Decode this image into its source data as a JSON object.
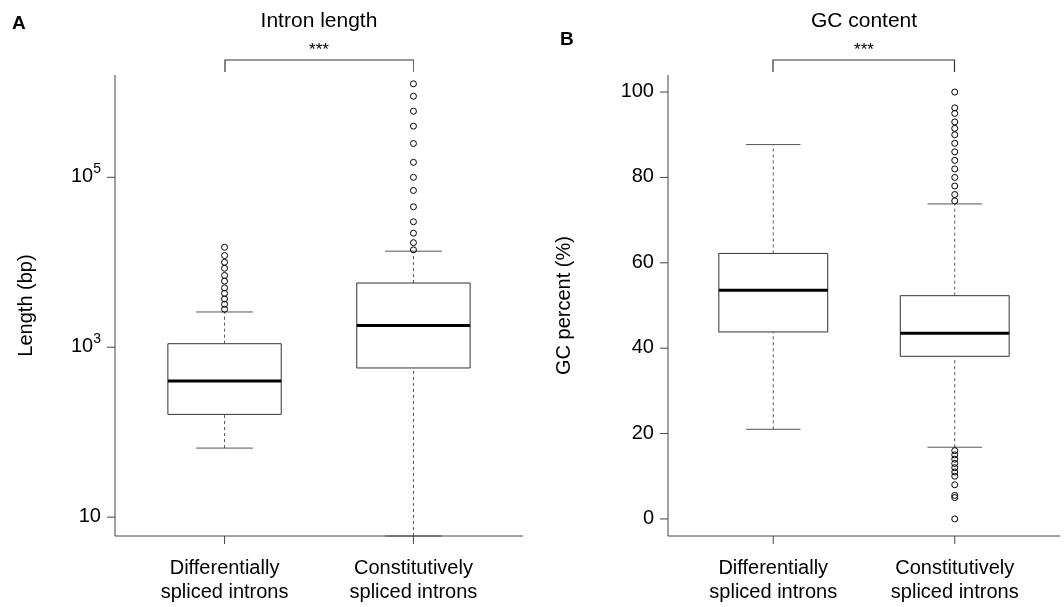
{
  "chart_data": [
    {
      "type": "box",
      "title": "Intron length",
      "ylabel": "Length (bp)",
      "categories": [
        "Differentially spliced introns",
        "Constitutively spliced introns"
      ],
      "log": true,
      "ylim": [
        6,
        1600000
      ],
      "yticks": [
        10,
        {
          "value": 1000,
          "label": "10$^{3}$"
        },
        {
          "value": 100000,
          "label": "10$^{5}$"
        }
      ],
      "boxes": [
        {
          "low": 65,
          "q1": 162,
          "median": 400,
          "q3": 1100,
          "high": 2600,
          "outliers": [
            2800,
            3200,
            3700,
            4300,
            5000,
            6000,
            7000,
            8500,
            10000,
            12000,
            15000
          ]
        },
        {
          "low": 6,
          "q1": 570,
          "median": 1800,
          "q3": 5700,
          "high": 13500,
          "outliers": [
            14000,
            17000,
            22000,
            30000,
            45000,
            70000,
            100000,
            150000,
            250000,
            400000,
            600000,
            900000,
            1260000
          ]
        }
      ],
      "annotations": [
        "A",
        "***"
      ]
    },
    {
      "type": "box",
      "title": "GC content",
      "ylabel": "GC percent (%)",
      "categories": [
        "Differentially spliced introns",
        "Constitutively spliced introns"
      ],
      "ylim": [
        -4,
        104
      ],
      "yticks": [
        0,
        20,
        40,
        60,
        80,
        100
      ],
      "boxes": [
        {
          "low": 21,
          "q1": 43.8,
          "median": 53.6,
          "q3": 62.2,
          "high": 87.7
        },
        {
          "low": 16.8,
          "q1": 38.1,
          "median": 43.5,
          "q3": 52.3,
          "high": 73.8,
          "outliers": [
            0,
            5,
            5.5,
            8,
            10,
            11,
            12,
            13,
            14,
            15,
            16,
            74.5,
            76,
            78,
            80,
            82,
            84,
            86,
            88,
            90,
            91.5,
            93,
            95,
            96.3,
            100
          ]
        }
      ],
      "annotations": [
        "B",
        "***"
      ]
    }
  ]
}
